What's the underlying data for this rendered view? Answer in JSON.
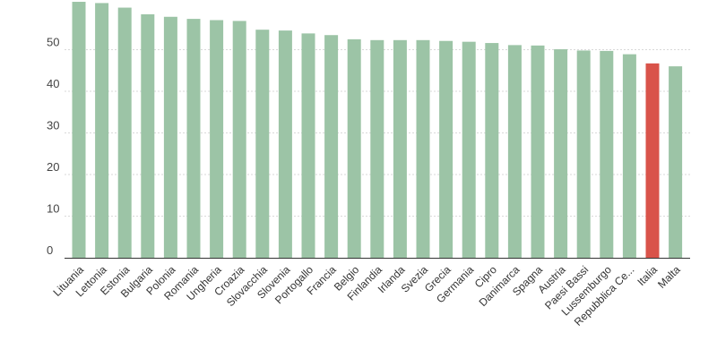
{
  "chart_data": {
    "type": "bar",
    "title": "",
    "xlabel": "",
    "ylabel": "",
    "ylim": [
      0,
      61
    ],
    "yticks": [
      0,
      10,
      20,
      30,
      40,
      50
    ],
    "grid": true,
    "categories": [
      "Lituania",
      "Lettonia",
      "Estonia",
      "Bulgaria",
      "Polonia",
      "Romania",
      "Ungheria",
      "Croazia",
      "Slovacchia",
      "Slovenia",
      "Portogallo",
      "Francia",
      "Belgio",
      "Finlandia",
      "Irlanda",
      "Svezia",
      "Grecia",
      "Germania",
      "Cipro",
      "Danimarca",
      "Spagna",
      "Austria",
      "Paesi Bassi",
      "Lussemburgo",
      "Repubblica Ce...",
      "Italia",
      "Malta"
    ],
    "values": [
      61.5,
      61.2,
      60.1,
      58.5,
      57.9,
      57.4,
      57.1,
      56.9,
      54.8,
      54.6,
      53.9,
      53.5,
      52.5,
      52.3,
      52.3,
      52.3,
      52.1,
      51.9,
      51.6,
      51.1,
      51.0,
      50.1,
      49.8,
      49.7,
      48.9,
      46.7,
      46.0
    ],
    "colors": {
      "default": "#9cc4a6",
      "highlight": "#d9534a",
      "highlight_category": "Italia"
    }
  }
}
